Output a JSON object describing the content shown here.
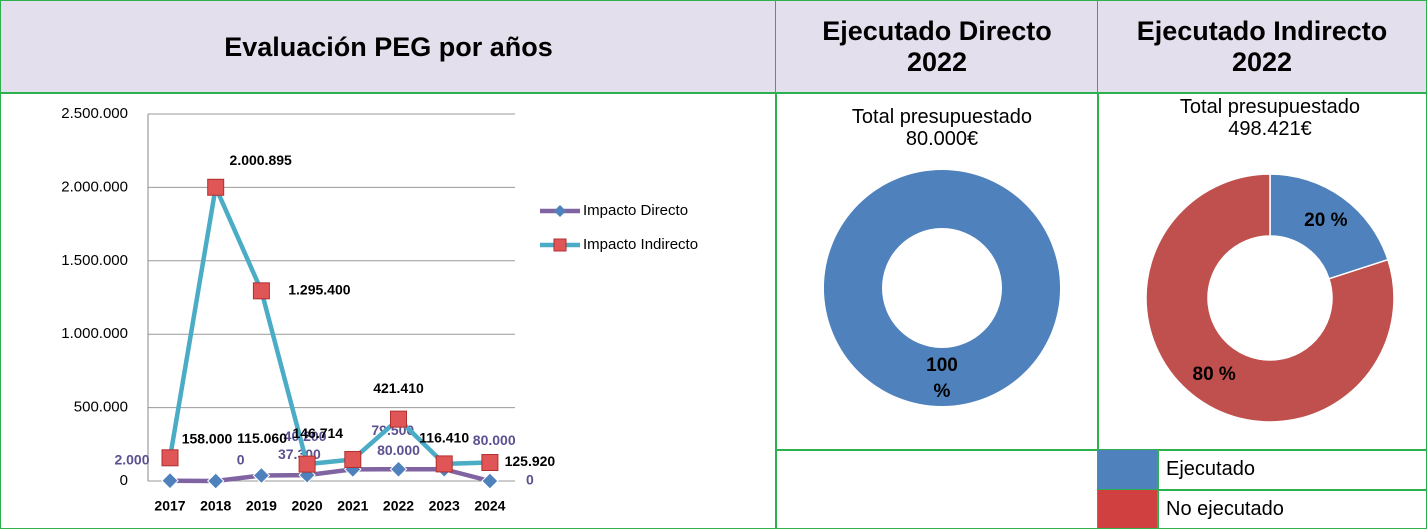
{
  "chart_data": [
    {
      "type": "line",
      "title": "Evaluación PEG por años",
      "categories": [
        "2017",
        "2018",
        "2019",
        "2020",
        "2021",
        "2022",
        "2023",
        "2024"
      ],
      "series": [
        {
          "name": "Impacto Directo",
          "color": "#8064a2",
          "marker": "diamond",
          "marker_color": "#4f81bd",
          "values": [
            2000,
            0,
            37300,
            40200,
            79500,
            80000,
            80000,
            0
          ],
          "value_labels": [
            "2.000",
            "0",
            "37.300",
            "40.200",
            "79.500",
            "80.000",
            "80.000",
            "0"
          ]
        },
        {
          "name": "Impacto Indirecto",
          "color": "#4bacc6",
          "marker": "square",
          "marker_color": "#e05555",
          "values": [
            158000,
            2000895,
            1295400,
            115060,
            146714,
            421410,
            116410,
            125920
          ],
          "value_labels": [
            "158.000",
            "2.000.895",
            "1.295.400",
            "115.060",
            "146.714",
            "421.410",
            "116.410",
            "125.920"
          ]
        }
      ],
      "ylim": [
        0,
        2500000
      ],
      "yticks": [
        0,
        {
          "value": 500000,
          "label": "500.000"
        },
        {
          "value": 1000000,
          "label": "1.000.000"
        },
        {
          "value": 1500000,
          "label": "1.500.000"
        },
        {
          "value": 2000000,
          "label": "2.000.000"
        },
        {
          "value": 2500000,
          "label": "2.500.000"
        }
      ],
      "grid": true,
      "legend": "right"
    },
    {
      "type": "donut",
      "title": "Ejecutado Directo 2022",
      "subtitle": "Total presupuestado 80.000€",
      "values": [
        100
      ],
      "value_labels": [
        "100 %"
      ],
      "colors": [
        "#4f81bd"
      ]
    },
    {
      "type": "donut",
      "title": "Ejecutado Indirecto 2022",
      "subtitle": "Total presupuestado 498.421€",
      "categories": [
        "Ejecutado",
        "No ejecutado"
      ],
      "values": [
        20,
        80
      ],
      "value_labels": [
        "20 %",
        "80 %"
      ],
      "colors": [
        "#4f81bd",
        "#c0504d"
      ],
      "legend_colors": [
        "#4f81bd",
        "#d04040"
      ]
    }
  ]
}
